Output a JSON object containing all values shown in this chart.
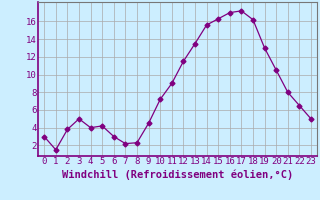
{
  "x": [
    0,
    1,
    2,
    3,
    4,
    5,
    6,
    7,
    8,
    9,
    10,
    11,
    12,
    13,
    14,
    15,
    16,
    17,
    18,
    19,
    20,
    21,
    22,
    23
  ],
  "y": [
    3.0,
    1.5,
    3.8,
    5.0,
    4.0,
    4.2,
    3.0,
    2.2,
    2.3,
    4.5,
    7.2,
    9.0,
    11.5,
    13.5,
    15.6,
    16.3,
    17.0,
    17.2,
    16.2,
    13.0,
    10.5,
    8.0,
    6.5,
    5.0
  ],
  "line_color": "#800080",
  "marker": "D",
  "markersize": 2.5,
  "bg_color": "#cceeff",
  "grid_color": "#aaaaaa",
  "xlabel": "Windchill (Refroidissement éolien,°C)",
  "ylabel_ticks": [
    2,
    4,
    6,
    8,
    10,
    12,
    14,
    16
  ],
  "xticks": [
    0,
    1,
    2,
    3,
    4,
    5,
    6,
    7,
    8,
    9,
    10,
    11,
    12,
    13,
    14,
    15,
    16,
    17,
    18,
    19,
    20,
    21,
    22,
    23
  ],
  "ylim": [
    0.8,
    18.2
  ],
  "xlim": [
    -0.5,
    23.5
  ],
  "tick_color": "#800080",
  "label_color": "#800080",
  "font_size": 6.5,
  "xlabel_font_size": 7.5
}
